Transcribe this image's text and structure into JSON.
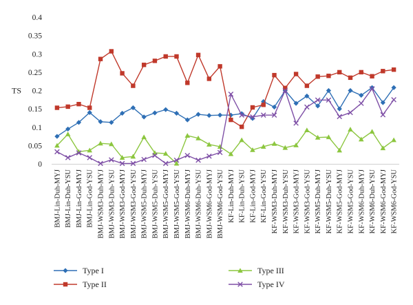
{
  "chart_data": {
    "type": "line",
    "title": "",
    "xlabel": "",
    "ylabel": "TS",
    "ylim": [
      0,
      0.4
    ],
    "yticks": [
      "0",
      "0.05",
      "0.1",
      "0.15",
      "0.2",
      "0.25",
      "0.3",
      "0.35",
      "0.4"
    ],
    "grid": false,
    "legend_position": "bottom",
    "categories": [
      "BMJ-Lin-Duh-MYJ",
      "BMJ-Lin-Duh-YSU",
      "BMJ-Lin-God-MYJ",
      "BMJ-Lin-God-YSU",
      "BMJ-WSM3-Duh-MYJ",
      "BMJ-WSM3-Duh-YSU",
      "BMJ-WSM3-God-MYJ",
      "BMJ-WSM3-God-YSU",
      "BMJ-WSM5-Duh-MYJ",
      "BMJ-WSM5-Duh-YSU",
      "BMJ-WSM5-God-MYJ",
      "BMJ-WSM5-God-YSU",
      "BMJ-WSM6-Duh-MYJ",
      "BMJ-WSM6-Duh-YSU",
      "BMJ-WSM6-God-MYJ",
      "BMJ-WSM6-God-YSU",
      "KF-Lin-Duh-MYJ",
      "KF-Lin-Duh-YSU",
      "KF-Lin-God-MYJ",
      "KF-Lin-God-YSU",
      "KF-WSM3-Duh-MYJ",
      "KF-WSM3-Duh-YSU",
      "KF-WSM3-God-MYJ",
      "KF-WSM3-God-YSU",
      "KF-WSM5-Duh-MYJ",
      "KF-WSM5-Duh-YSU",
      "KF-WSM5-God-MYJ",
      "KF-WSM5-God-YSU",
      "KF-WSM6-Duh-MYJ",
      "KF-WSM6-Duh-YSU",
      "KF-WSM6-God-MYJ",
      "KF-WSM6-God-YSU"
    ],
    "series": [
      {
        "name": "Type I",
        "color": "#2e6fb5",
        "marker": "diamond",
        "values": [
          0.075,
          0.095,
          0.113,
          0.14,
          0.115,
          0.113,
          0.138,
          0.153,
          0.128,
          0.139,
          0.148,
          0.138,
          0.12,
          0.135,
          0.132,
          0.133,
          0.133,
          0.137,
          0.124,
          0.17,
          0.155,
          0.2,
          0.165,
          0.185,
          0.158,
          0.2,
          0.15,
          0.2,
          0.187,
          0.208,
          0.167,
          0.208
        ]
      },
      {
        "name": "Type II",
        "color": "#c0392b",
        "marker": "square",
        "values": [
          0.153,
          0.156,
          0.163,
          0.153,
          0.286,
          0.307,
          0.247,
          0.213,
          0.27,
          0.281,
          0.293,
          0.293,
          0.221,
          0.297,
          0.232,
          0.266,
          0.12,
          0.101,
          0.154,
          0.161,
          0.242,
          0.207,
          0.245,
          0.213,
          0.238,
          0.24,
          0.25,
          0.235,
          0.25,
          0.239,
          0.253,
          0.257
        ]
      },
      {
        "name": "Type III",
        "color": "#8cc63f",
        "marker": "triangle",
        "values": [
          0.05,
          0.081,
          0.033,
          0.037,
          0.056,
          0.054,
          0.017,
          0.02,
          0.073,
          0.03,
          0.028,
          0.001,
          0.077,
          0.07,
          0.053,
          0.047,
          0.027,
          0.065,
          0.038,
          0.047,
          0.055,
          0.044,
          0.051,
          0.092,
          0.072,
          0.073,
          0.037,
          0.094,
          0.067,
          0.088,
          0.043,
          0.065
        ]
      },
      {
        "name": "Type IV",
        "color": "#7e4fa6",
        "marker": "x",
        "values": [
          0.033,
          0.017,
          0.03,
          0.017,
          0.001,
          0.011,
          0.001,
          0.001,
          0.012,
          0.023,
          0.001,
          0.01,
          0.023,
          0.01,
          0.021,
          0.031,
          0.19,
          0.133,
          0.128,
          0.133,
          0.133,
          0.2,
          0.111,
          0.155,
          0.174,
          0.174,
          0.129,
          0.14,
          0.165,
          0.205,
          0.134,
          0.175
        ]
      }
    ]
  }
}
